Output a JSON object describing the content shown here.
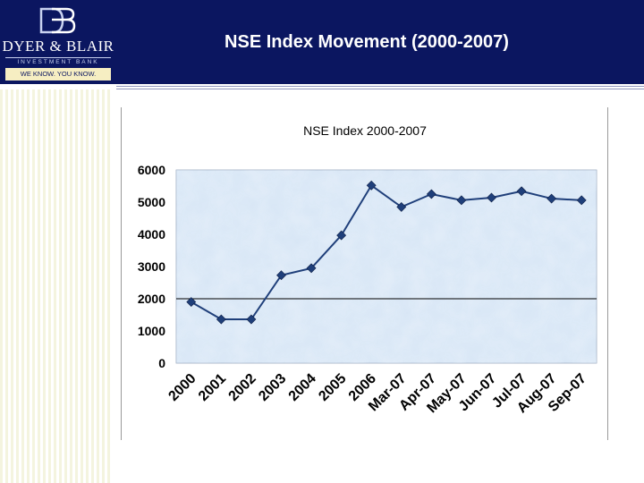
{
  "header": {
    "logo_name": "DYER & BLAIR",
    "logo_sub": "INVESTMENT BANK",
    "logo_tag": "WE KNOW. YOU KNOW.",
    "slide_title": "NSE Index Movement (2000-2007)"
  },
  "colors": {
    "header_bg": "#0b1660",
    "plot_bg": "#d9e8f6",
    "series": "#1f3f7a"
  },
  "chart_data": {
    "type": "line",
    "title": "NSE Index 2000-2007",
    "xlabel": "",
    "ylabel": "",
    "categories": [
      "2000",
      "2001",
      "2002",
      "2003",
      "2004",
      "2005",
      "2006",
      "Mar-07",
      "Apr-07",
      "May-07",
      "Jun-07",
      "Jul-07",
      "Aug-07",
      "Sep-07"
    ],
    "series": [
      {
        "values": [
          1900,
          1360,
          1360,
          2730,
          2950,
          3970,
          5520,
          4850,
          5250,
          5060,
          5140,
          5340,
          5110,
          5060
        ]
      }
    ],
    "ylim": [
      0,
      6000
    ],
    "yticks": [
      "0",
      "1000",
      "2000",
      "3000",
      "4000",
      "5000",
      "6000"
    ],
    "reference_line": 2000,
    "grid": false,
    "legend": "none"
  }
}
